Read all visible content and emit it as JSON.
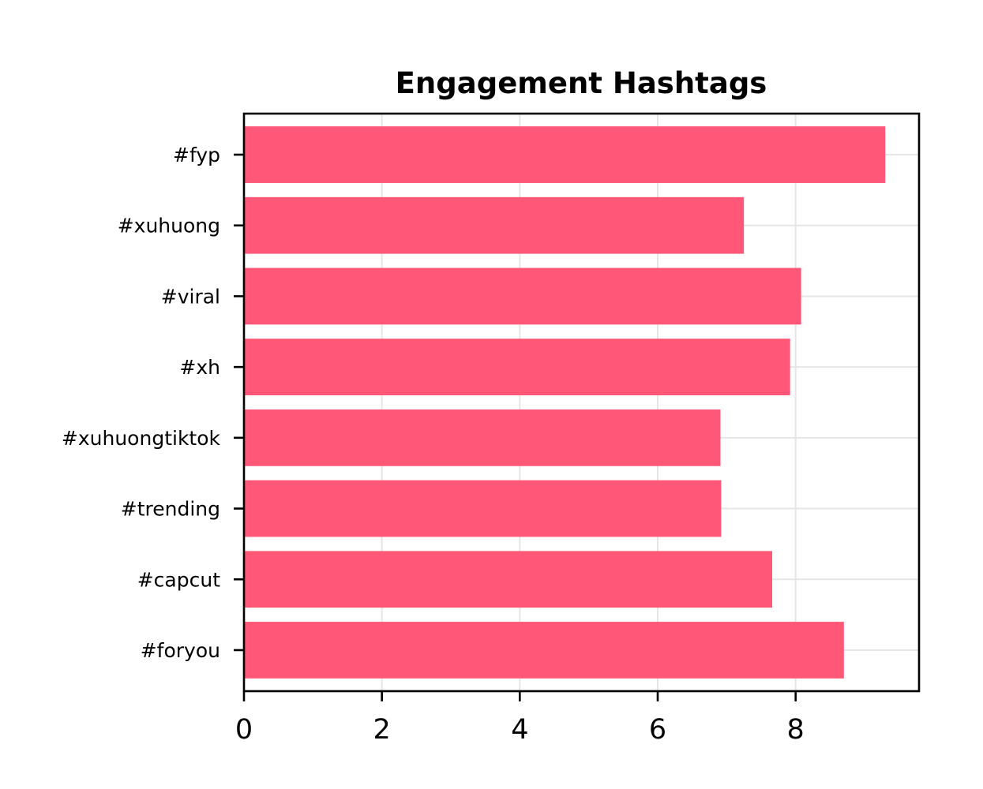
{
  "chart_data": {
    "type": "bar",
    "orientation": "horizontal",
    "title": "Engagement Hashtags",
    "xlabel": "",
    "ylabel": "",
    "categories": [
      "#fyp",
      "#xuhuong",
      "#viral",
      "#xh",
      "#xuhuongtiktok",
      "#trending",
      "#capcut",
      "#foryou"
    ],
    "values": [
      9.3,
      7.25,
      8.08,
      7.92,
      6.91,
      6.92,
      7.66,
      8.7
    ],
    "xlim": [
      0,
      9.79
    ],
    "xticks": [
      0,
      2,
      4,
      6,
      8
    ],
    "xtick_labels": [
      "0",
      "2",
      "4",
      "6",
      "8"
    ],
    "grid": true,
    "bar_color": "#ff5777",
    "grid_color": "#e6e6e6"
  }
}
